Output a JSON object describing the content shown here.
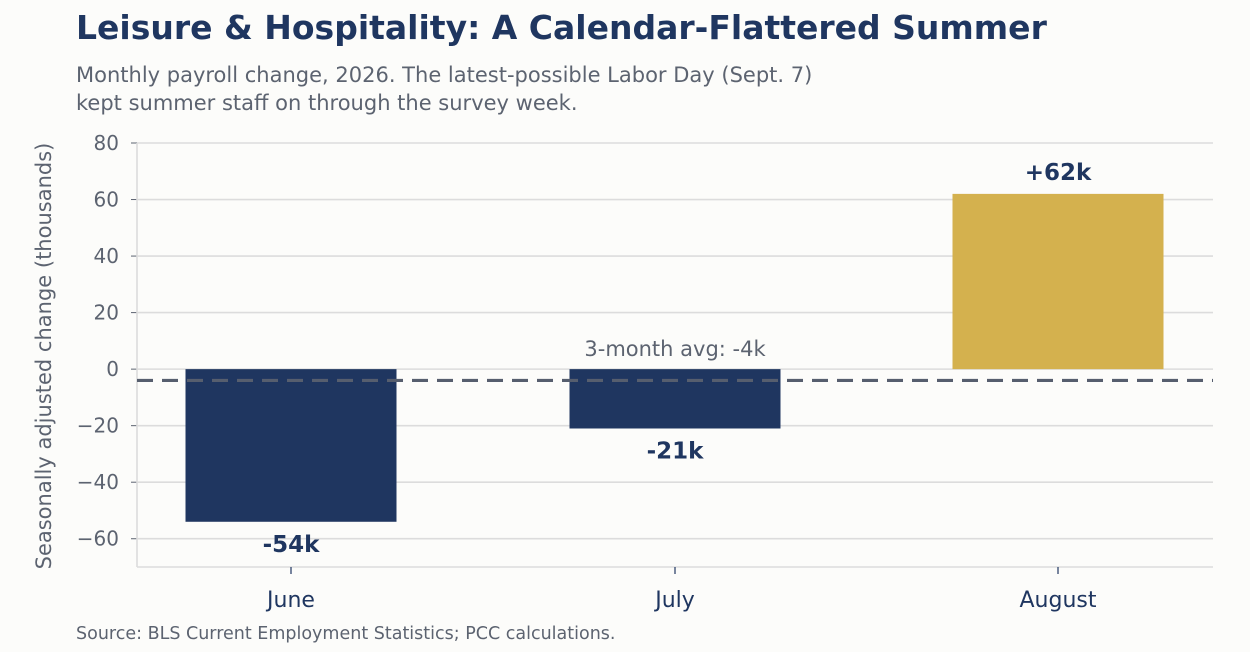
{
  "title": "Leisure & Hospitality: A Calendar-Flattered Summer",
  "subtitle_lines": [
    "Monthly payroll change, 2026. The latest-possible Labor Day (Sept. 7)",
    "kept summer staff on through the survey week."
  ],
  "source": "Source: BLS Current Employment Statistics; PCC calculations.",
  "colors": {
    "negative_bar": "#1f3660",
    "positive_bar": "#d4b14e",
    "avg_line": "#565e6e",
    "grid": "#dcdcdc",
    "text_muted": "#5c6370",
    "text_dark": "#1f3660"
  },
  "chart_data": {
    "type": "bar",
    "categories": [
      "June",
      "July",
      "August"
    ],
    "values": [
      -54,
      -21,
      62
    ],
    "data_labels": [
      "-54k",
      "-21k",
      "+62k"
    ],
    "ylabel": "Seasonally adjusted change (thousands)",
    "ylim": [
      -70,
      80
    ],
    "yticks": [
      80,
      60,
      40,
      20,
      0,
      -20,
      -40,
      -60
    ],
    "ytick_labels": [
      "80",
      "60",
      "40",
      "20",
      "0",
      "−20",
      "−40",
      "−60"
    ],
    "reference_line": {
      "value": -4,
      "label": "3-month avg: -4k",
      "style": "dashed"
    },
    "grid": true,
    "legend": "none"
  }
}
